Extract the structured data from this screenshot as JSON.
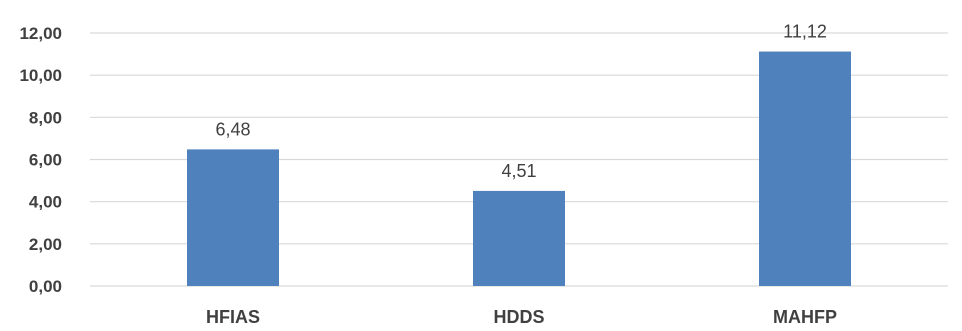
{
  "chart_data": {
    "type": "bar",
    "categories": [
      "HFIAS",
      "HDDS",
      "MAHFP"
    ],
    "values": [
      6.48,
      4.51,
      11.12
    ],
    "value_labels": [
      "6,48",
      "4,51",
      "11,12"
    ],
    "ylim": [
      0,
      12
    ],
    "yticks": [
      0,
      2,
      4,
      6,
      8,
      10,
      12
    ],
    "ytick_labels": [
      "0,00",
      "2,00",
      "4,00",
      "6,00",
      "8,00",
      "10,00",
      "12,00"
    ],
    "grid": true,
    "legend": "none",
    "title": "",
    "xlabel": "",
    "ylabel": "",
    "bar_color": "#4f81bd",
    "grid_color": "#d9d9d9",
    "text_color": "#404040"
  }
}
